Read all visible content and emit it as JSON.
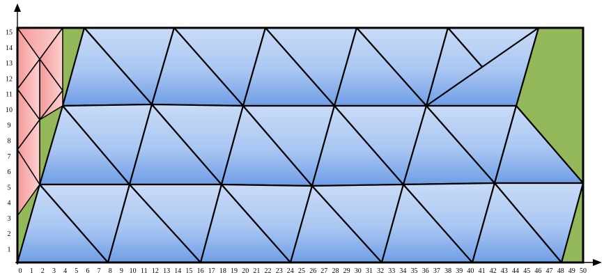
{
  "axes": {
    "x_ticks": [
      "0",
      "1",
      "2",
      "3",
      "4",
      "5",
      "6",
      "7",
      "8",
      "9",
      "10",
      "11",
      "12",
      "13",
      "14",
      "15",
      "16",
      "17",
      "18",
      "19",
      "20",
      "21",
      "22",
      "23",
      "24",
      "25",
      "26",
      "27",
      "28",
      "29",
      "30",
      "31",
      "32",
      "33",
      "34",
      "35",
      "36",
      "37",
      "38",
      "39",
      "40",
      "41",
      "42",
      "43",
      "44",
      "45",
      "46",
      "47",
      "48",
      "49",
      "50"
    ],
    "y_ticks": [
      "1",
      "2",
      "3",
      "4",
      "5",
      "6",
      "7",
      "8",
      "9",
      "10",
      "11",
      "12",
      "13",
      "14",
      "15"
    ]
  },
  "colors": {
    "green_region": "#93b85a",
    "blue_triangle_top": "#c7d9f6",
    "blue_triangle_bottom": "#6f9ee6",
    "pink_triangle": "#f7a6a6",
    "outline": "#000000"
  },
  "regions": {
    "green_count": 4,
    "blue_triangle_count": 35,
    "pink_triangle_count": 11
  }
}
